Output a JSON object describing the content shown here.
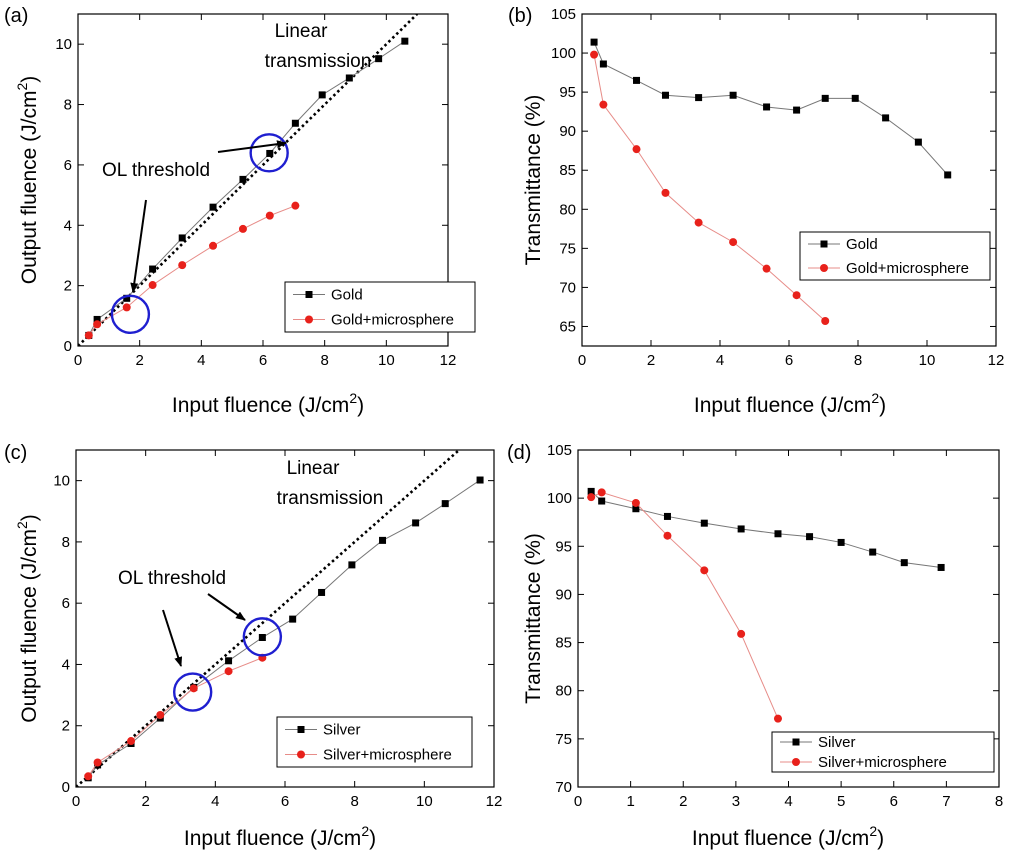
{
  "chart_data": [
    {
      "panel": "(a)",
      "type": "scatter",
      "xlabel": "Input fluence (J/cm",
      "xlabel_sup": "2",
      "xlabel_end": ")",
      "ylabel": "Output fluence (J/cm",
      "ylabel_sup": "2",
      "ylabel_end": ")",
      "xlim": [
        0,
        12
      ],
      "ylim": [
        0,
        11
      ],
      "xticks": [
        0,
        2,
        4,
        6,
        8,
        10,
        12
      ],
      "yticks": [
        0,
        2,
        4,
        6,
        8,
        10
      ],
      "legend_position": "bottom-right",
      "series": [
        {
          "name": "Gold",
          "marker": "square",
          "color": "#000000",
          "x": [
            0.35,
            0.62,
            1.58,
            2.42,
            3.38,
            4.38,
            5.35,
            6.22,
            7.05,
            7.92,
            8.8,
            9.75,
            10.6
          ],
          "y": [
            0.35,
            0.88,
            1.58,
            2.55,
            3.58,
            4.6,
            5.52,
            6.38,
            7.38,
            8.32,
            8.88,
            9.52,
            10.1
          ]
        },
        {
          "name": "Gold+microsphere",
          "marker": "circle",
          "color": "#e8211b",
          "x": [
            0.35,
            0.62,
            1.58,
            2.42,
            3.38,
            4.38,
            5.35,
            6.22,
            7.05
          ],
          "y": [
            0.35,
            0.72,
            1.28,
            2.02,
            2.68,
            3.32,
            3.88,
            4.32,
            4.65
          ]
        }
      ],
      "reference_line": {
        "label": "Linear transmission",
        "slope": 1
      },
      "highlight_circles": [
        {
          "x": 1.7,
          "y": 1.05
        },
        {
          "x": 6.2,
          "y": 6.4
        }
      ],
      "annotations": {
        "linear_line1": "Linear",
        "linear_line2": "transmission",
        "threshold": "OL threshold"
      }
    },
    {
      "panel": "(b)",
      "type": "line",
      "xlabel": "Input fluence (J/cm",
      "xlabel_sup": "2",
      "xlabel_end": ")",
      "ylabel": "Transmittance (%)",
      "xlim": [
        0,
        12
      ],
      "ylim": [
        62.5,
        105
      ],
      "xticks": [
        0,
        2,
        4,
        6,
        8,
        10,
        12
      ],
      "yticks": [
        65,
        70,
        75,
        80,
        85,
        90,
        95,
        100,
        105
      ],
      "legend_position": "right",
      "series": [
        {
          "name": "Gold",
          "marker": "square",
          "color": "#000000",
          "x": [
            0.35,
            0.62,
            1.58,
            2.42,
            3.38,
            4.38,
            5.35,
            6.22,
            7.05,
            7.92,
            8.8,
            9.75,
            10.6
          ],
          "y": [
            101.4,
            98.6,
            96.5,
            94.6,
            94.3,
            94.6,
            93.1,
            92.7,
            94.2,
            94.2,
            91.7,
            88.6,
            84.4
          ]
        },
        {
          "name": "Gold+microsphere",
          "marker": "circle",
          "color": "#e8211b",
          "x": [
            0.35,
            0.62,
            1.58,
            2.42,
            3.38,
            4.38,
            5.35,
            6.22,
            7.05
          ],
          "y": [
            99.8,
            93.4,
            87.7,
            82.1,
            78.3,
            75.8,
            72.4,
            69.0,
            65.7
          ]
        }
      ]
    },
    {
      "panel": "(c)",
      "type": "scatter",
      "xlabel": "Input fluence (J/cm",
      "xlabel_sup": "2",
      "xlabel_end": ")",
      "ylabel": "Output fluence (J/cm",
      "ylabel_sup": "2",
      "ylabel_end": ")",
      "xlim": [
        0,
        12
      ],
      "ylim": [
        0,
        11
      ],
      "xticks": [
        0,
        2,
        4,
        6,
        8,
        10,
        12
      ],
      "yticks": [
        0,
        2,
        4,
        6,
        8,
        10
      ],
      "legend_position": "bottom-right",
      "series": [
        {
          "name": "Silver",
          "marker": "square",
          "color": "#000000",
          "x": [
            0.35,
            0.62,
            1.58,
            2.42,
            3.38,
            4.38,
            5.35,
            6.22,
            7.05,
            7.92,
            8.8,
            9.75,
            10.6,
            11.6
          ],
          "y": [
            0.3,
            0.72,
            1.42,
            2.25,
            3.25,
            4.12,
            4.88,
            5.48,
            6.35,
            7.25,
            8.05,
            8.62,
            9.25,
            10.02
          ]
        },
        {
          "name": "Silver+microsphere",
          "marker": "circle",
          "color": "#e8211b",
          "x": [
            0.35,
            0.62,
            1.58,
            2.42,
            3.38,
            4.38,
            5.35
          ],
          "y": [
            0.35,
            0.8,
            1.5,
            2.35,
            3.22,
            3.78,
            4.22
          ]
        }
      ],
      "reference_line": {
        "label": "Linear transmission",
        "slope": 1
      },
      "highlight_circles": [
        {
          "x": 3.35,
          "y": 3.1
        },
        {
          "x": 5.35,
          "y": 4.9
        }
      ],
      "annotations": {
        "linear_line1": "Linear",
        "linear_line2": "transmission",
        "threshold": "OL threshold"
      }
    },
    {
      "panel": "(d)",
      "type": "line",
      "xlabel": "Input fluence (J/cm",
      "xlabel_sup": "2",
      "xlabel_end": ")",
      "ylabel": "Transmittance (%)",
      "xlim": [
        0,
        8
      ],
      "ylim": [
        70,
        105
      ],
      "xticks": [
        0,
        1,
        2,
        3,
        4,
        5,
        6,
        7,
        8
      ],
      "yticks": [
        70,
        75,
        80,
        85,
        90,
        95,
        100,
        105
      ],
      "legend_position": "bottom-right",
      "series": [
        {
          "name": "Silver",
          "marker": "square",
          "color": "#000000",
          "x": [
            0.25,
            0.45,
            1.1,
            1.7,
            2.4,
            3.1,
            3.8,
            4.4,
            5.0,
            5.6,
            6.2,
            6.9
          ],
          "y": [
            100.7,
            99.7,
            98.9,
            98.1,
            97.4,
            96.8,
            96.3,
            96.0,
            95.4,
            94.4,
            93.3,
            92.8
          ]
        },
        {
          "name": "Silver+microsphere",
          "marker": "circle",
          "color": "#e8211b",
          "x": [
            0.25,
            0.45,
            1.1,
            1.7,
            2.4,
            3.1,
            3.8
          ],
          "y": [
            100.1,
            100.6,
            99.5,
            96.1,
            92.5,
            85.9,
            77.1
          ]
        }
      ]
    }
  ]
}
